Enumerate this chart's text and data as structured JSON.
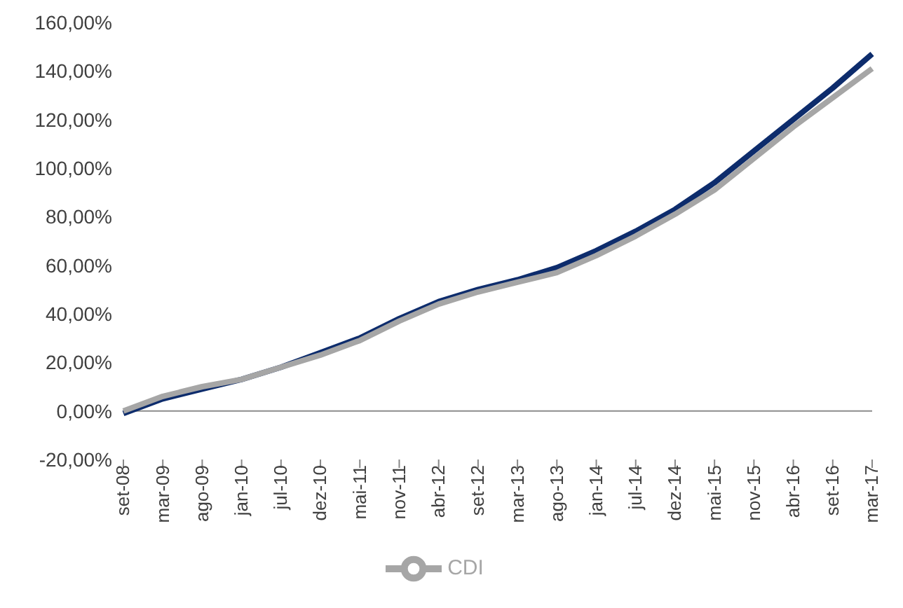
{
  "chart_data": {
    "type": "line",
    "categories": [
      "set-08",
      "mar-09",
      "ago-09",
      "jan-10",
      "jul-10",
      "dez-10",
      "mai-11",
      "nov-11",
      "abr-12",
      "set-12",
      "mar-13",
      "ago-13",
      "jan-14",
      "jul-14",
      "dez-14",
      "mai-15",
      "nov-15",
      "abr-16",
      "set-16",
      "mar-17"
    ],
    "series": [
      {
        "color": "#0d2c6c",
        "values": [
          -1,
          5,
          9,
          13,
          18,
          24,
          30,
          38,
          45,
          50,
          54,
          59,
          66,
          74,
          83,
          94,
          107,
          120,
          133,
          147
        ]
      },
      {
        "name": "CDI",
        "color": "#a6a6a6",
        "values": [
          0,
          6,
          10,
          13,
          18,
          23,
          29,
          37,
          44,
          49,
          53,
          57,
          64,
          72,
          81,
          91,
          104,
          117,
          129,
          141
        ]
      }
    ],
    "ylim": [
      -20,
      160
    ],
    "yticks": [
      {
        "value": -20,
        "label": "-20,00%"
      },
      {
        "value": 0,
        "label": "0,00%"
      },
      {
        "value": 20,
        "label": "20,00%"
      },
      {
        "value": 40,
        "label": "40,00%"
      },
      {
        "value": 60,
        "label": "60,00%"
      },
      {
        "value": 80,
        "label": "80,00%"
      },
      {
        "value": 100,
        "label": "100,00%"
      },
      {
        "value": 120,
        "label": "120,00%"
      },
      {
        "value": 140,
        "label": "140,00%"
      },
      {
        "value": 160,
        "label": "160,00%"
      }
    ],
    "ref_lines": [
      {
        "axis": "y",
        "value": 0,
        "color": "#8c8c8c"
      }
    ],
    "grid": false,
    "legend": "bottom",
    "marker": "none",
    "line_style": "solid"
  }
}
